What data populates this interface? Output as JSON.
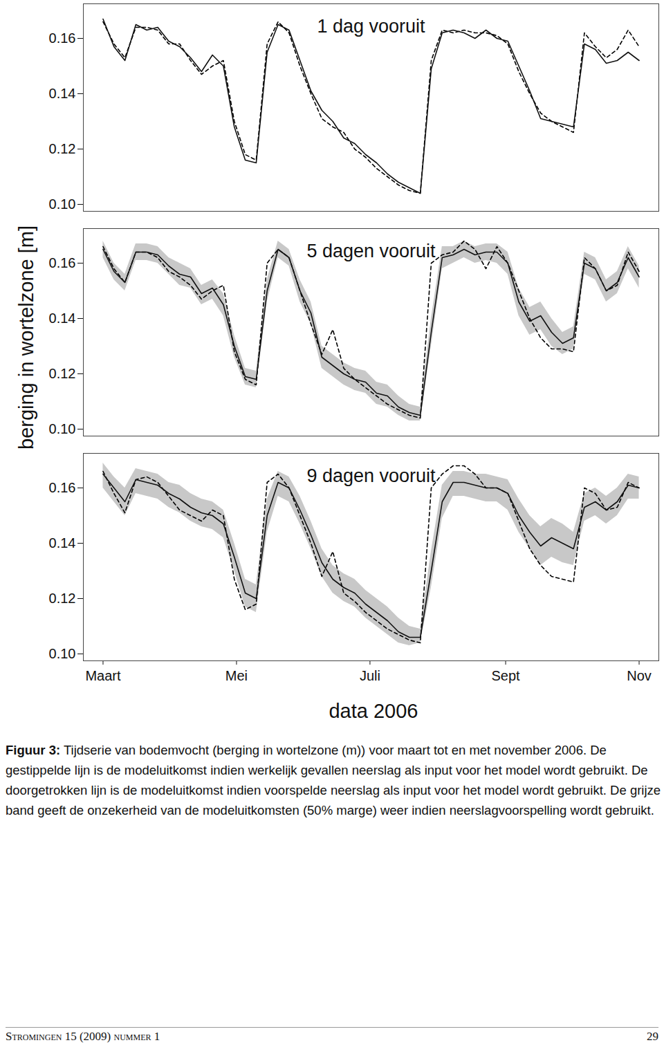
{
  "figure": {
    "ylabel": "berging in wortelzone [m]",
    "xlabel": "data 2006",
    "caption_label": "Figuur 3:",
    "caption": "Tijdserie van bodemvocht (berging in wortelzone (m)) voor maart tot en met november 2006. De gestippelde lijn is de modeluitkomst indien werkelijk gevallen neerslag als input voor het model wordt gebruikt. De doorgetrokken lijn is de modeluitkomst indien voorspelde neerslag als input voor het model wordt gebruikt. De grijze band geeft de onzekerheid van de modeluitkomsten (50% marge) weer indien neerslagvoorspelling wordt gebruikt.",
    "footer": "Stromingen 15 (2009) nummer 1",
    "page": "29"
  },
  "chart_data": [
    {
      "type": "line",
      "title": "1 dag vooruit",
      "tick_labels": "y",
      "xlim": [
        -9,
        254
      ],
      "xticks": [
        {
          "value": 0,
          "label": "Maart"
        },
        {
          "value": 61,
          "label": "Mei"
        },
        {
          "value": 122,
          "label": "Juli"
        },
        {
          "value": 184,
          "label": "Sept"
        },
        {
          "value": 245,
          "label": "Nov"
        }
      ],
      "ylim": [
        0.0975,
        0.1725
      ],
      "yticks": [
        {
          "value": 0.1,
          "label": "0.10"
        },
        0.12,
        0.14,
        0.16
      ],
      "x": [
        0,
        5,
        10,
        15,
        20,
        25,
        30,
        35,
        40,
        45,
        50,
        55,
        60,
        65,
        70,
        75,
        80,
        85,
        90,
        95,
        100,
        105,
        110,
        115,
        120,
        125,
        130,
        135,
        140,
        145,
        150,
        155,
        160,
        165,
        170,
        175,
        180,
        185,
        190,
        195,
        200,
        205,
        210,
        215,
        220,
        225,
        230,
        235,
        240,
        245
      ],
      "series": [
        {
          "line_style": "dashed",
          "color": "#000000",
          "values": [
            0.166,
            0.158,
            0.153,
            0.164,
            0.164,
            0.163,
            0.158,
            0.158,
            0.152,
            0.147,
            0.15,
            0.152,
            0.13,
            0.118,
            0.116,
            0.158,
            0.166,
            0.162,
            0.15,
            0.14,
            0.131,
            0.128,
            0.126,
            0.12,
            0.117,
            0.113,
            0.11,
            0.107,
            0.105,
            0.104,
            0.152,
            0.163,
            0.162,
            0.163,
            0.162,
            0.162,
            0.161,
            0.158,
            0.148,
            0.14,
            0.133,
            0.13,
            0.128,
            0.126,
            0.162,
            0.157,
            0.153,
            0.156,
            0.163,
            0.157
          ]
        },
        {
          "line_style": "solid",
          "color": "#111111",
          "values": [
            0.167,
            0.157,
            0.152,
            0.165,
            0.163,
            0.164,
            0.159,
            0.157,
            0.153,
            0.148,
            0.154,
            0.15,
            0.128,
            0.116,
            0.115,
            0.155,
            0.165,
            0.163,
            0.152,
            0.141,
            0.134,
            0.13,
            0.124,
            0.122,
            0.118,
            0.115,
            0.111,
            0.108,
            0.106,
            0.104,
            0.149,
            0.162,
            0.163,
            0.162,
            0.16,
            0.163,
            0.16,
            0.159,
            0.15,
            0.141,
            0.131,
            0.13,
            0.129,
            0.128,
            0.158,
            0.156,
            0.151,
            0.152,
            0.155,
            0.152
          ]
        }
      ]
    },
    {
      "type": "line",
      "title": "5 dagen vooruit",
      "tick_labels": "y",
      "xlim": [
        -9,
        254
      ],
      "xticks": [
        {
          "value": 0,
          "label": "Maart"
        },
        {
          "value": 61,
          "label": "Mei"
        },
        {
          "value": 122,
          "label": "Juli"
        },
        {
          "value": 184,
          "label": "Sept"
        },
        {
          "value": 245,
          "label": "Nov"
        }
      ],
      "ylim": [
        0.0975,
        0.1725
      ],
      "yticks": [
        {
          "value": 0.1,
          "label": "0.10"
        },
        0.12,
        0.14,
        0.16
      ],
      "x": [
        0,
        5,
        10,
        15,
        20,
        25,
        30,
        35,
        40,
        45,
        50,
        55,
        60,
        65,
        70,
        75,
        80,
        85,
        90,
        95,
        100,
        105,
        110,
        115,
        120,
        125,
        130,
        135,
        140,
        145,
        150,
        155,
        160,
        165,
        170,
        175,
        180,
        185,
        190,
        195,
        200,
        205,
        210,
        215,
        220,
        225,
        230,
        235,
        240,
        245
      ],
      "band": {
        "color": "#c8c8c8",
        "lower": [
          0.162,
          0.154,
          0.15,
          0.161,
          0.161,
          0.16,
          0.156,
          0.152,
          0.151,
          0.145,
          0.147,
          0.141,
          0.126,
          0.116,
          0.115,
          0.146,
          0.162,
          0.159,
          0.146,
          0.138,
          0.122,
          0.119,
          0.116,
          0.114,
          0.113,
          0.109,
          0.108,
          0.105,
          0.103,
          0.103,
          0.13,
          0.158,
          0.16,
          0.162,
          0.16,
          0.161,
          0.16,
          0.156,
          0.141,
          0.134,
          0.136,
          0.13,
          0.127,
          0.129,
          0.156,
          0.154,
          0.146,
          0.149,
          0.158,
          0.151
        ],
        "upper": [
          0.168,
          0.16,
          0.156,
          0.167,
          0.167,
          0.166,
          0.162,
          0.16,
          0.158,
          0.152,
          0.154,
          0.149,
          0.134,
          0.122,
          0.121,
          0.154,
          0.168,
          0.165,
          0.154,
          0.146,
          0.13,
          0.127,
          0.124,
          0.122,
          0.121,
          0.117,
          0.116,
          0.112,
          0.109,
          0.108,
          0.14,
          0.166,
          0.166,
          0.168,
          0.166,
          0.167,
          0.167,
          0.164,
          0.151,
          0.144,
          0.146,
          0.14,
          0.135,
          0.137,
          0.164,
          0.162,
          0.154,
          0.157,
          0.166,
          0.159
        ]
      },
      "series": [
        {
          "line_style": "dashed",
          "color": "#000000",
          "values": [
            0.166,
            0.158,
            0.153,
            0.164,
            0.164,
            0.162,
            0.157,
            0.155,
            0.152,
            0.147,
            0.15,
            0.152,
            0.128,
            0.118,
            0.116,
            0.16,
            0.165,
            0.162,
            0.15,
            0.138,
            0.127,
            0.136,
            0.122,
            0.118,
            0.115,
            0.112,
            0.109,
            0.107,
            0.105,
            0.104,
            0.16,
            0.163,
            0.164,
            0.168,
            0.165,
            0.158,
            0.166,
            0.16,
            0.15,
            0.14,
            0.133,
            0.129,
            0.129,
            0.128,
            0.162,
            0.158,
            0.15,
            0.152,
            0.164,
            0.157
          ]
        },
        {
          "line_style": "solid",
          "color": "#111111",
          "values": [
            0.165,
            0.157,
            0.153,
            0.164,
            0.164,
            0.163,
            0.159,
            0.156,
            0.155,
            0.149,
            0.151,
            0.145,
            0.13,
            0.119,
            0.118,
            0.15,
            0.165,
            0.162,
            0.15,
            0.142,
            0.126,
            0.123,
            0.12,
            0.118,
            0.117,
            0.113,
            0.112,
            0.108,
            0.106,
            0.105,
            0.135,
            0.162,
            0.163,
            0.165,
            0.163,
            0.164,
            0.164,
            0.16,
            0.146,
            0.139,
            0.141,
            0.135,
            0.131,
            0.133,
            0.16,
            0.158,
            0.15,
            0.153,
            0.162,
            0.155
          ]
        }
      ]
    },
    {
      "type": "line",
      "title": "9 dagen vooruit",
      "tick_labels": true,
      "xlim": [
        -9,
        254
      ],
      "xticks": [
        {
          "value": 0,
          "label": "Maart"
        },
        {
          "value": 61,
          "label": "Mei"
        },
        {
          "value": 122,
          "label": "Juli"
        },
        {
          "value": 184,
          "label": "Sept"
        },
        {
          "value": 245,
          "label": "Nov"
        }
      ],
      "ylim": [
        0.0975,
        0.1725
      ],
      "yticks": [
        {
          "value": 0.1,
          "label": "0.10"
        },
        0.12,
        0.14,
        0.16
      ],
      "x": [
        0,
        5,
        10,
        15,
        20,
        25,
        30,
        35,
        40,
        45,
        50,
        55,
        60,
        65,
        70,
        75,
        80,
        85,
        90,
        95,
        100,
        105,
        110,
        115,
        120,
        125,
        130,
        135,
        140,
        145,
        150,
        155,
        160,
        165,
        170,
        175,
        180,
        185,
        190,
        195,
        200,
        205,
        210,
        215,
        220,
        225,
        230,
        235,
        240,
        245
      ],
      "band": {
        "color": "#c8c8c8",
        "lower": [
          0.16,
          0.155,
          0.15,
          0.158,
          0.157,
          0.156,
          0.153,
          0.151,
          0.148,
          0.146,
          0.145,
          0.142,
          0.13,
          0.117,
          0.115,
          0.144,
          0.157,
          0.155,
          0.147,
          0.138,
          0.128,
          0.122,
          0.119,
          0.117,
          0.113,
          0.11,
          0.107,
          0.104,
          0.103,
          0.104,
          0.124,
          0.149,
          0.157,
          0.157,
          0.156,
          0.155,
          0.155,
          0.152,
          0.144,
          0.138,
          0.132,
          0.135,
          0.133,
          0.132,
          0.148,
          0.15,
          0.147,
          0.15,
          0.156,
          0.156
        ],
        "upper": [
          0.169,
          0.164,
          0.16,
          0.167,
          0.166,
          0.165,
          0.162,
          0.161,
          0.158,
          0.156,
          0.155,
          0.152,
          0.14,
          0.127,
          0.125,
          0.156,
          0.166,
          0.164,
          0.157,
          0.148,
          0.138,
          0.132,
          0.129,
          0.127,
          0.123,
          0.12,
          0.117,
          0.113,
          0.11,
          0.109,
          0.137,
          0.161,
          0.166,
          0.166,
          0.165,
          0.165,
          0.164,
          0.163,
          0.156,
          0.15,
          0.146,
          0.149,
          0.147,
          0.144,
          0.158,
          0.16,
          0.157,
          0.16,
          0.165,
          0.164
        ]
      },
      "series": [
        {
          "line_style": "dashed",
          "color": "#000000",
          "values": [
            0.166,
            0.158,
            0.151,
            0.163,
            0.164,
            0.162,
            0.157,
            0.152,
            0.15,
            0.148,
            0.152,
            0.15,
            0.127,
            0.116,
            0.118,
            0.162,
            0.165,
            0.16,
            0.15,
            0.14,
            0.128,
            0.137,
            0.122,
            0.119,
            0.115,
            0.112,
            0.109,
            0.107,
            0.105,
            0.104,
            0.16,
            0.165,
            0.168,
            0.168,
            0.165,
            0.16,
            0.16,
            0.158,
            0.148,
            0.138,
            0.132,
            0.128,
            0.127,
            0.126,
            0.16,
            0.158,
            0.152,
            0.153,
            0.162,
            0.16
          ]
        },
        {
          "line_style": "solid",
          "color": "#111111",
          "values": [
            0.165,
            0.16,
            0.155,
            0.163,
            0.162,
            0.161,
            0.158,
            0.156,
            0.153,
            0.151,
            0.15,
            0.147,
            0.135,
            0.122,
            0.12,
            0.15,
            0.162,
            0.16,
            0.152,
            0.143,
            0.133,
            0.127,
            0.124,
            0.122,
            0.118,
            0.115,
            0.112,
            0.108,
            0.106,
            0.106,
            0.13,
            0.155,
            0.162,
            0.162,
            0.161,
            0.16,
            0.16,
            0.158,
            0.15,
            0.144,
            0.139,
            0.142,
            0.14,
            0.138,
            0.153,
            0.155,
            0.152,
            0.155,
            0.161,
            0.16
          ]
        }
      ]
    }
  ]
}
